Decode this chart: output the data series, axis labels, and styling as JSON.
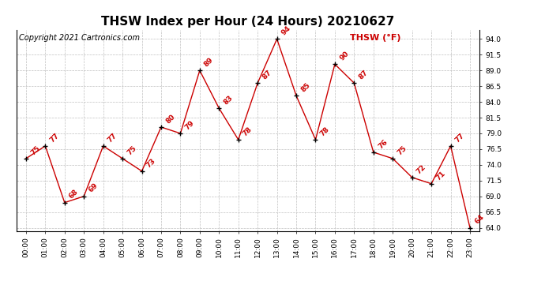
{
  "title": "THSW Index per Hour (24 Hours) 20210627",
  "copyright": "Copyright 2021 Cartronics.com",
  "legend_label": "THSW (°F)",
  "hours": [
    "00:00",
    "01:00",
    "02:00",
    "03:00",
    "04:00",
    "05:00",
    "06:00",
    "07:00",
    "08:00",
    "09:00",
    "10:00",
    "11:00",
    "12:00",
    "13:00",
    "14:00",
    "15:00",
    "16:00",
    "17:00",
    "18:00",
    "19:00",
    "20:00",
    "21:00",
    "22:00",
    "23:00"
  ],
  "values": [
    75,
    77,
    68,
    69,
    77,
    75,
    73,
    80,
    79,
    89,
    83,
    78,
    87,
    94,
    85,
    78,
    90,
    87,
    76,
    75,
    72,
    71,
    77,
    64
  ],
  "line_color": "#cc0000",
  "marker_color": "#000000",
  "label_color": "#cc0000",
  "title_color": "#000000",
  "copyright_color": "#000000",
  "legend_color": "#cc0000",
  "background_color": "#ffffff",
  "grid_color": "#c0c0c0",
  "ylim": [
    63.5,
    95.5
  ],
  "yticks": [
    64.0,
    66.5,
    69.0,
    71.5,
    74.0,
    76.5,
    79.0,
    81.5,
    84.0,
    86.5,
    89.0,
    91.5,
    94.0
  ],
  "title_fontsize": 11,
  "copyright_fontsize": 7,
  "label_fontsize": 6.5,
  "tick_fontsize": 6.5,
  "legend_fontsize": 8
}
